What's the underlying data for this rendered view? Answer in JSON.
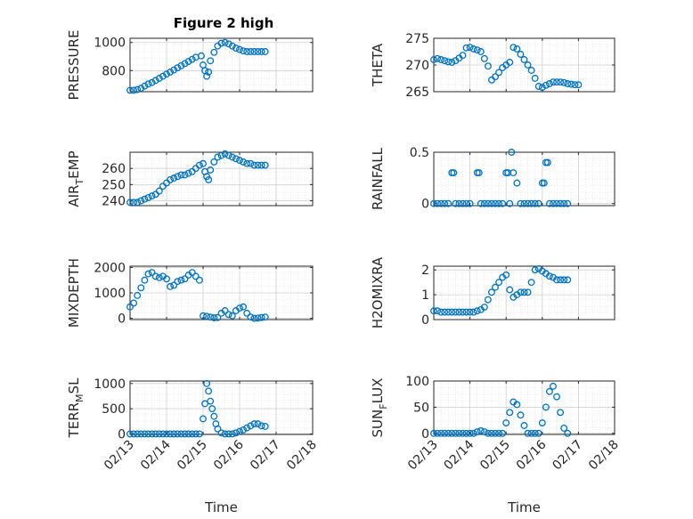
{
  "figure": {
    "title": "Figure 2 high"
  },
  "chart_data": [
    {
      "type": "scatter",
      "ylabel": "PRESSURE",
      "xlabel": "",
      "xlim": [
        0,
        5
      ],
      "ylim": [
        650,
        1030
      ],
      "yticks": [
        800,
        1000
      ],
      "xticks": [
        0,
        1,
        2,
        3,
        4,
        5
      ],
      "xticklabels": [],
      "grid": true,
      "series": [
        {
          "x": [
            0,
            0.1,
            0.2,
            0.3,
            0.4,
            0.5,
            0.6,
            0.7,
            0.8,
            0.9,
            1.0,
            1.1,
            1.2,
            1.3,
            1.4,
            1.5,
            1.6,
            1.7,
            1.8,
            1.95,
            2.0,
            2.05,
            2.1,
            2.15,
            2.2,
            2.3,
            2.4,
            2.5,
            2.6,
            2.7,
            2.8,
            2.9,
            3.0,
            3.1,
            3.2,
            3.3,
            3.4,
            3.5,
            3.6,
            3.7
          ],
          "y": [
            660,
            660,
            665,
            675,
            690,
            705,
            715,
            730,
            745,
            760,
            775,
            790,
            805,
            820,
            835,
            850,
            865,
            880,
            895,
            905,
            840,
            800,
            760,
            790,
            870,
            930,
            975,
            995,
            1000,
            990,
            975,
            960,
            950,
            940,
            935,
            935,
            935,
            935,
            935,
            935
          ]
        }
      ]
    },
    {
      "type": "scatter",
      "ylabel": "THETA",
      "xlabel": "",
      "xlim": [
        0,
        5
      ],
      "ylim": [
        265,
        275
      ],
      "yticks": [
        265,
        270,
        275
      ],
      "xticks": [
        0,
        1,
        2,
        3,
        4,
        5
      ],
      "xticklabels": [],
      "grid": true,
      "series": [
        {
          "x": [
            0,
            0.1,
            0.2,
            0.3,
            0.4,
            0.5,
            0.6,
            0.7,
            0.8,
            0.9,
            1.0,
            1.1,
            1.2,
            1.3,
            1.4,
            1.5,
            1.6,
            1.7,
            1.8,
            1.9,
            2.0,
            2.1,
            2.2,
            2.3,
            2.4,
            2.5,
            2.6,
            2.7,
            2.8,
            2.9,
            3.0,
            3.1,
            3.2,
            3.3,
            3.4,
            3.5,
            3.6,
            3.7,
            3.8,
            3.9,
            4.0
          ],
          "y": [
            271,
            271.2,
            271,
            270.8,
            270.6,
            270.5,
            270.8,
            271.3,
            271.8,
            273.2,
            273.3,
            273,
            272.8,
            272.5,
            271.2,
            269.8,
            267.2,
            267.8,
            268.6,
            269.5,
            270,
            270.5,
            273.3,
            273,
            272,
            271,
            270,
            269,
            267.5,
            266,
            265.8,
            266.2,
            266.5,
            266.8,
            266.8,
            266.8,
            266.7,
            266.5,
            266.4,
            266.3,
            266.3
          ]
        }
      ]
    },
    {
      "type": "scatter",
      "ylabel": "AIR_TEMP",
      "xlabel": "",
      "xlim": [
        0,
        5
      ],
      "ylim": [
        237,
        270
      ],
      "yticks": [
        240,
        250,
        260
      ],
      "xticks": [
        0,
        1,
        2,
        3,
        4,
        5
      ],
      "xticklabels": [],
      "grid": true,
      "series": [
        {
          "x": [
            0,
            0.1,
            0.2,
            0.3,
            0.4,
            0.5,
            0.6,
            0.7,
            0.8,
            0.9,
            1.0,
            1.1,
            1.2,
            1.3,
            1.4,
            1.5,
            1.6,
            1.7,
            1.8,
            1.9,
            2.0,
            2.05,
            2.1,
            2.15,
            2.2,
            2.3,
            2.4,
            2.5,
            2.6,
            2.7,
            2.8,
            2.9,
            3.0,
            3.1,
            3.2,
            3.3,
            3.4,
            3.5,
            3.6,
            3.7
          ],
          "y": [
            239,
            239,
            239,
            240,
            241,
            242,
            243,
            244,
            246,
            249,
            251,
            253,
            254,
            255,
            256,
            256,
            257,
            258,
            260,
            262,
            263,
            258,
            255,
            253,
            259,
            264,
            267,
            268,
            269,
            268,
            267,
            266,
            265,
            264,
            263,
            263,
            262,
            262,
            262,
            262
          ]
        }
      ]
    },
    {
      "type": "scatter",
      "ylabel": "RAINFALL",
      "xlabel": "",
      "xlim": [
        0,
        5
      ],
      "ylim": [
        -0.02,
        0.5
      ],
      "yticks": [
        0,
        0.5
      ],
      "xticks": [
        0,
        1,
        2,
        3,
        4,
        5
      ],
      "xticklabels": [],
      "grid": true,
      "series": [
        {
          "x": [
            0,
            0.1,
            0.2,
            0.3,
            0.4,
            0.5,
            0.55,
            0.6,
            0.7,
            0.8,
            0.9,
            1.0,
            1.2,
            1.25,
            1.3,
            1.4,
            1.5,
            1.6,
            1.7,
            1.8,
            1.9,
            2.0,
            2.05,
            2.1,
            2.15,
            2.2,
            2.3,
            2.4,
            2.5,
            2.6,
            2.7,
            2.8,
            2.9,
            3.0,
            3.05,
            3.1,
            3.15,
            3.2,
            3.3,
            3.4,
            3.5,
            3.6,
            3.7
          ],
          "y": [
            0,
            0,
            0,
            0,
            0,
            0.3,
            0.3,
            0,
            0,
            0,
            0,
            0,
            0.3,
            0.3,
            0,
            0,
            0,
            0,
            0,
            0,
            0,
            0.3,
            0.3,
            0,
            0.5,
            0.3,
            0.2,
            0,
            0,
            0,
            0,
            0,
            0,
            0.2,
            0.2,
            0.4,
            0.4,
            0,
            0,
            0,
            0,
            0,
            0
          ]
        }
      ]
    },
    {
      "type": "scatter",
      "ylabel": "MIXDEPTH",
      "xlabel": "",
      "xlim": [
        0,
        5
      ],
      "ylim": [
        -50,
        2050
      ],
      "yticks": [
        0,
        1000,
        2000
      ],
      "xticks": [
        0,
        1,
        2,
        3,
        4,
        5
      ],
      "xticklabels": [],
      "grid": true,
      "series": [
        {
          "x": [
            0,
            0.1,
            0.2,
            0.3,
            0.4,
            0.5,
            0.6,
            0.7,
            0.8,
            0.9,
            1.0,
            1.1,
            1.2,
            1.3,
            1.4,
            1.5,
            1.6,
            1.7,
            1.8,
            1.9,
            2.0,
            2.1,
            2.2,
            2.3,
            2.4,
            2.5,
            2.6,
            2.7,
            2.8,
            2.9,
            3.0,
            3.1,
            3.2,
            3.3,
            3.4,
            3.5,
            3.6,
            3.7
          ],
          "y": [
            450,
            600,
            900,
            1200,
            1500,
            1750,
            1800,
            1650,
            1600,
            1650,
            1550,
            1250,
            1300,
            1450,
            1500,
            1550,
            1700,
            1800,
            1650,
            1500,
            100,
            80,
            50,
            20,
            30,
            200,
            300,
            150,
            100,
            300,
            400,
            450,
            200,
            50,
            0,
            10,
            30,
            50
          ]
        }
      ]
    },
    {
      "type": "scatter",
      "ylabel": "H2OMIXRA",
      "xlabel": "",
      "xlim": [
        0,
        5
      ],
      "ylim": [
        0,
        2.15
      ],
      "yticks": [
        0,
        1,
        2
      ],
      "xticks": [
        0,
        1,
        2,
        3,
        4,
        5
      ],
      "xticklabels": [],
      "grid": true,
      "series": [
        {
          "x": [
            0,
            0.1,
            0.2,
            0.3,
            0.4,
            0.5,
            0.6,
            0.7,
            0.8,
            0.9,
            1.0,
            1.1,
            1.2,
            1.3,
            1.4,
            1.5,
            1.6,
            1.7,
            1.8,
            1.9,
            2.0,
            2.1,
            2.2,
            2.3,
            2.4,
            2.5,
            2.6,
            2.7,
            2.8,
            2.9,
            3.0,
            3.1,
            3.2,
            3.3,
            3.4,
            3.5,
            3.6,
            3.7
          ],
          "y": [
            0.35,
            0.35,
            0.3,
            0.3,
            0.3,
            0.3,
            0.3,
            0.3,
            0.3,
            0.3,
            0.3,
            0.3,
            0.35,
            0.4,
            0.5,
            0.8,
            1.1,
            1.3,
            1.5,
            1.7,
            1.8,
            1.2,
            0.9,
            1.0,
            1.1,
            1.1,
            1.1,
            1.5,
            2.0,
            2.05,
            1.95,
            1.85,
            1.75,
            1.7,
            1.6,
            1.6,
            1.6,
            1.6
          ]
        }
      ]
    },
    {
      "type": "scatter",
      "ylabel": "TERR_MSL",
      "xlabel": "Time",
      "xlim": [
        0,
        5
      ],
      "ylim": [
        -10,
        1050
      ],
      "yticks": [
        0,
        500,
        1000
      ],
      "xticks": [
        0,
        1,
        2,
        3,
        4,
        5
      ],
      "xticklabels": [
        "02/13",
        "02/14",
        "02/15",
        "02/16",
        "02/17",
        "02/18"
      ],
      "grid": true,
      "series": [
        {
          "x": [
            0,
            0.1,
            0.2,
            0.3,
            0.4,
            0.5,
            0.6,
            0.7,
            0.8,
            0.9,
            1.0,
            1.1,
            1.2,
            1.3,
            1.4,
            1.5,
            1.6,
            1.7,
            1.8,
            1.9,
            2.0,
            2.05,
            2.1,
            2.15,
            2.2,
            2.25,
            2.3,
            2.35,
            2.4,
            2.5,
            2.6,
            2.7,
            2.8,
            2.9,
            3.0,
            3.1,
            3.2,
            3.3,
            3.4,
            3.5,
            3.6,
            3.7
          ],
          "y": [
            0,
            0,
            0,
            0,
            0,
            0,
            0,
            0,
            0,
            0,
            0,
            0,
            0,
            0,
            0,
            0,
            0,
            0,
            0,
            0,
            300,
            600,
            1000,
            850,
            650,
            500,
            350,
            200,
            100,
            20,
            0,
            0,
            0,
            20,
            50,
            80,
            120,
            160,
            200,
            200,
            160,
            150
          ]
        }
      ]
    },
    {
      "type": "scatter",
      "ylabel": "SUN_FLUX",
      "xlabel": "Time",
      "xlim": [
        0,
        5
      ],
      "ylim": [
        -2,
        100
      ],
      "yticks": [
        0,
        50,
        100
      ],
      "xticks": [
        0,
        1,
        2,
        3,
        4,
        5
      ],
      "xticklabels": [
        "02/13",
        "02/14",
        "02/15",
        "02/16",
        "02/17",
        "02/18"
      ],
      "grid": true,
      "series": [
        {
          "x": [
            0,
            0.1,
            0.2,
            0.3,
            0.4,
            0.5,
            0.6,
            0.7,
            0.8,
            0.9,
            1.0,
            1.1,
            1.2,
            1.3,
            1.4,
            1.5,
            1.6,
            1.7,
            1.8,
            1.9,
            2.0,
            2.1,
            2.2,
            2.3,
            2.4,
            2.5,
            2.6,
            2.7,
            2.8,
            2.9,
            3.0,
            3.1,
            3.2,
            3.3,
            3.4,
            3.5,
            3.6,
            3.7
          ],
          "y": [
            0,
            0,
            0,
            0,
            0,
            0,
            0,
            0,
            0,
            0,
            0,
            0,
            3,
            5,
            3,
            0,
            0,
            0,
            0,
            0,
            20,
            40,
            60,
            55,
            35,
            15,
            0,
            0,
            0,
            0,
            20,
            50,
            80,
            90,
            70,
            40,
            10,
            0
          ]
        }
      ]
    }
  ]
}
